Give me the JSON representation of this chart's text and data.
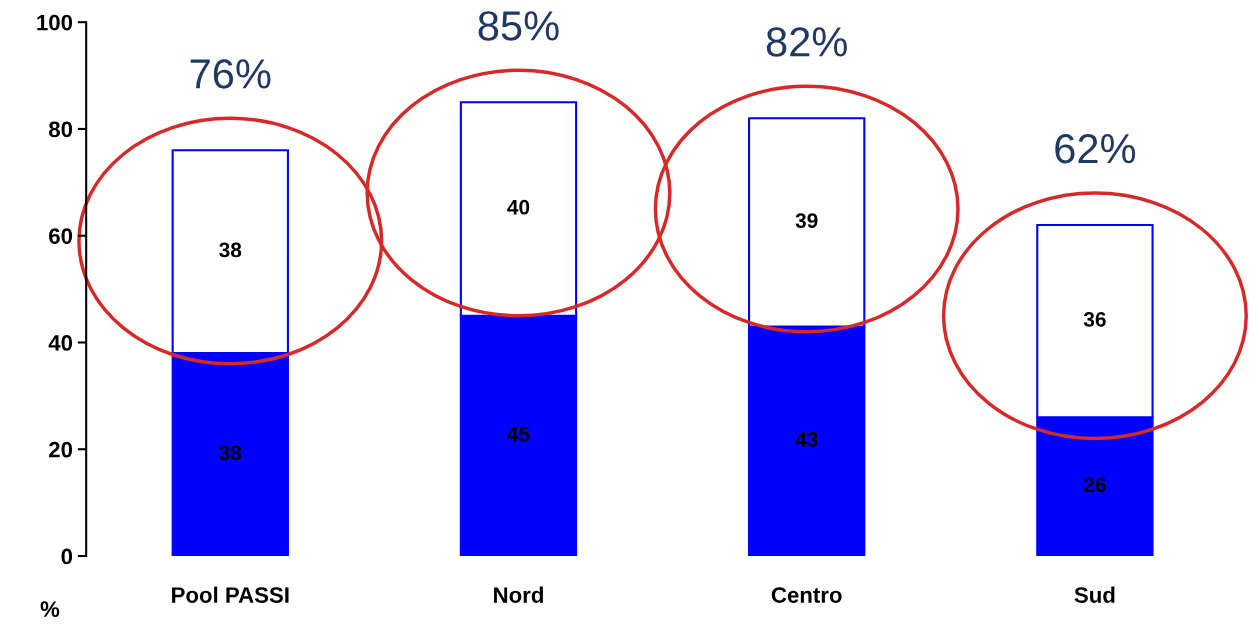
{
  "chart_data": {
    "type": "bar",
    "stacked": true,
    "categories": [
      "Pool PASSI",
      "Nord",
      "Centro",
      "Sud"
    ],
    "series": [
      {
        "color": "#0000ff",
        "values": [
          38,
          45,
          43,
          26
        ]
      },
      {
        "color": "#ffffff",
        "values": [
          38,
          40,
          39,
          36
        ]
      }
    ],
    "totals": [
      "76%",
      "85%",
      "82%",
      "62%"
    ],
    "data_labels": true,
    "ylabel": "%",
    "ylim": [
      0,
      100
    ],
    "yticks": [
      0,
      20,
      40,
      60,
      80,
      100
    ],
    "grid": false,
    "legend": false
  }
}
